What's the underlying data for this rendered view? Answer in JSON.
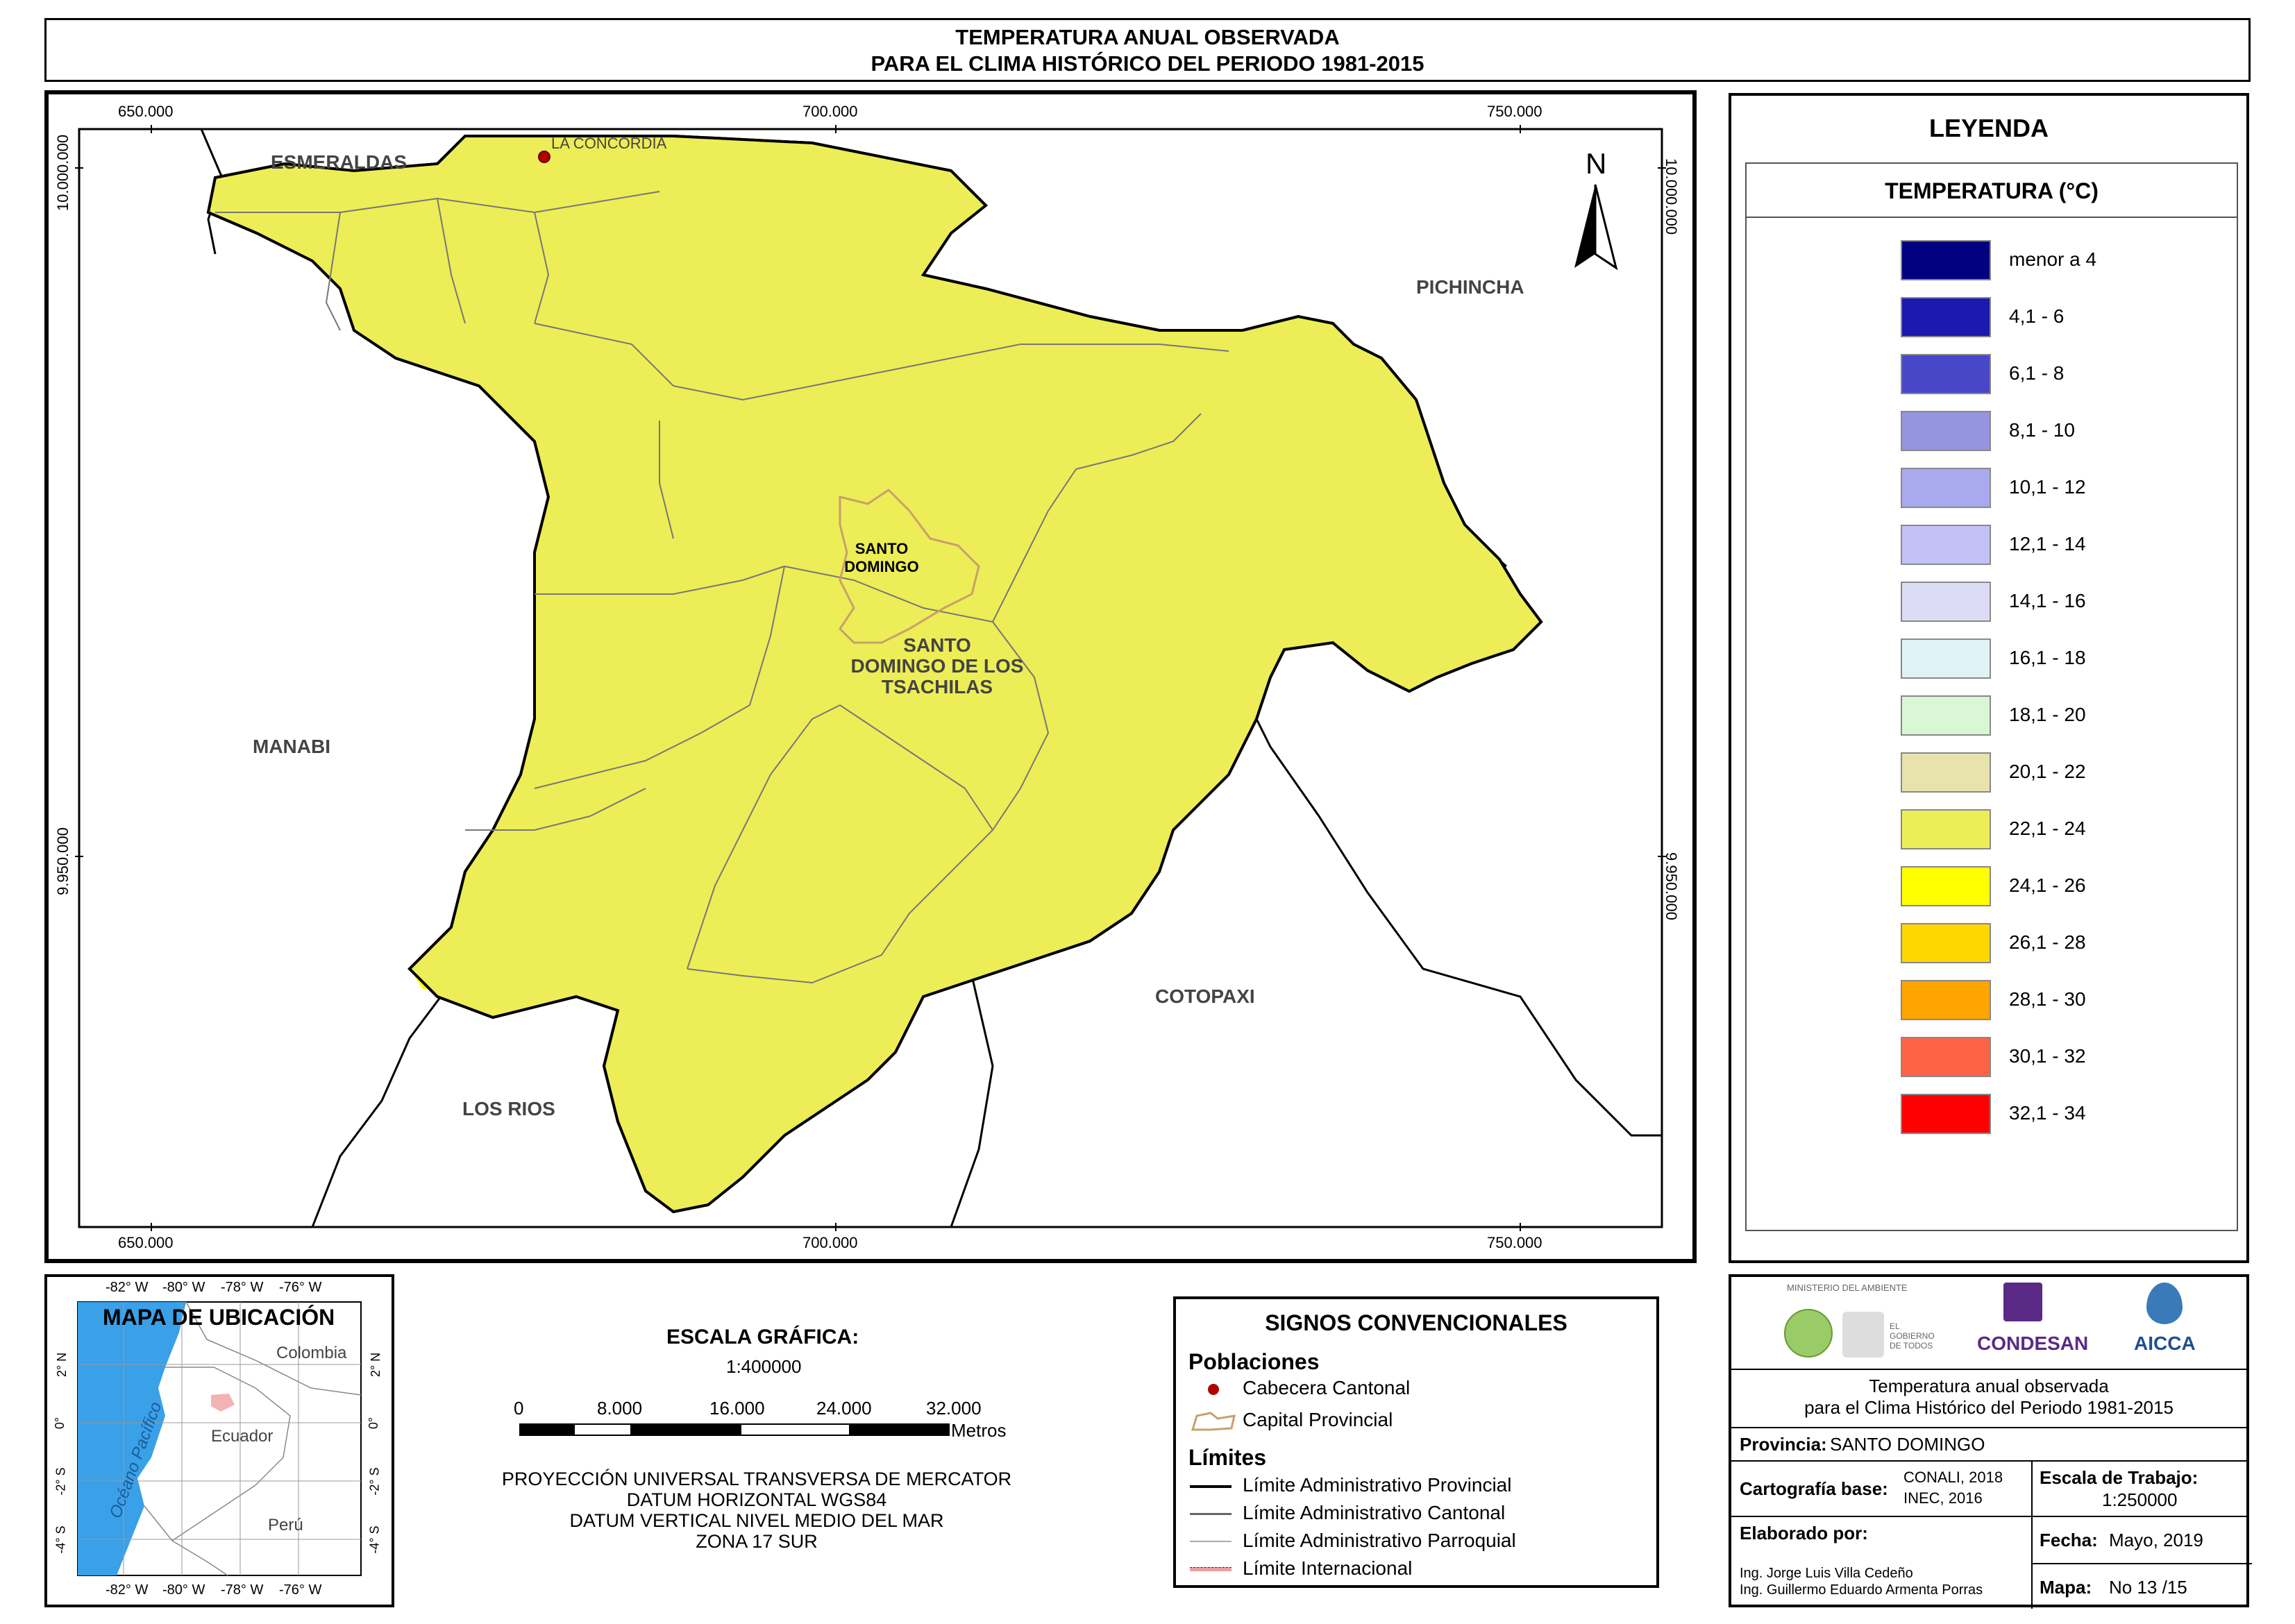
{
  "title": {
    "line1": "TEMPERATURA ANUAL OBSERVADA",
    "line2": "PARA EL CLIMA HISTÓRICO DEL PERIODO 1981-2015"
  },
  "map": {
    "x_ticks": [
      "650.000",
      "700.000",
      "750.000"
    ],
    "y_ticks": [
      "10.000.000",
      "9.950.000"
    ],
    "north": "N",
    "regions": {
      "esmeraldas": "ESMERALDAS",
      "pichincha": "PICHINCHA",
      "manabi": "MANABI",
      "cotopaxi": "COTOPAXI",
      "los_rios": "LOS RIOS",
      "santo_domingo_de_los": "SANTO",
      "santo_domingo_de_los_2": "DOMINGO DE LOS",
      "santo_domingo_de_los_3": "TSACHILAS"
    },
    "cities": {
      "la_concordia": "LA CONCORDIA",
      "santo_domingo_1": "SANTO",
      "santo_domingo_2": "DOMINGO"
    },
    "colors": {
      "t22_24": "#eded57",
      "t24_26": "#ffff00",
      "t20_22": "#e8e3ad",
      "t18_20": "#d9f7d4",
      "t16_18": "#e1f2f7",
      "t14_16": "#dcdcf7"
    }
  },
  "legend": {
    "title": "LEYENDA",
    "subtitle": "TEMPERATURA (°C)",
    "items": [
      {
        "label": "menor a 4",
        "color": "#000080"
      },
      {
        "label": "4,1 - 6",
        "color": "#1a1ab0"
      },
      {
        "label": "6,1 - 8",
        "color": "#4747c8"
      },
      {
        "label": "8,1 - 10",
        "color": "#9494e0"
      },
      {
        "label": "10,1 - 12",
        "color": "#a9a9ee"
      },
      {
        "label": "12,1 - 14",
        "color": "#c2c2f7"
      },
      {
        "label": "14,1 - 16",
        "color": "#dcdcf7"
      },
      {
        "label": "16,1 - 18",
        "color": "#e1f2f7"
      },
      {
        "label": "18,1 - 20",
        "color": "#d9f7d4"
      },
      {
        "label": "20,1 - 22",
        "color": "#e8e3ad"
      },
      {
        "label": "22,1 - 24",
        "color": "#eded57"
      },
      {
        "label": "24,1 - 26",
        "color": "#ffff00"
      },
      {
        "label": "26,1 - 28",
        "color": "#ffd700"
      },
      {
        "label": "28,1 - 30",
        "color": "#ffa500"
      },
      {
        "label": "30,1 - 32",
        "color": "#ff6347"
      },
      {
        "label": "32,1 - 34",
        "color": "#ff0000"
      }
    ]
  },
  "location_map": {
    "title": "MAPA DE UBICACIÓN",
    "top_ticks": [
      "-82° W",
      "-80° W",
      "-78° W",
      "-76° W"
    ],
    "bottom_ticks": [
      "-82° W",
      "-80° W",
      "-78° W",
      "-76° W"
    ],
    "left_ticks": [
      "2° N",
      "0°",
      "-2° S",
      "-4° S"
    ],
    "right_ticks": [
      "2° N",
      "0°",
      "-2° S",
      "-4° S"
    ],
    "ocean": "Océano Pacífico",
    "colombia": "Colombia",
    "ecuador": "Ecuador",
    "peru": "Perú"
  },
  "scale": {
    "title": "ESCALA GRÁFICA:",
    "ratio": "1:400000",
    "ticks": [
      "0",
      "8.000",
      "16.000",
      "24.000",
      "32.000"
    ],
    "unit": "Metros",
    "proj1": "PROYECCIÓN UNIVERSAL TRANSVERSA DE MERCATOR",
    "proj2": "DATUM HORIZONTAL WGS84",
    "proj3": "DATUM VERTICAL NIVEL MEDIO DEL MAR",
    "proj4": "ZONA 17 SUR"
  },
  "signs": {
    "title": "SIGNOS CONVENCIONALES",
    "poblaciones": "Poblaciones",
    "cabecera": "Cabecera Cantonal",
    "capital": "Capital Provincial",
    "limites": "Límites",
    "lim_prov": "Límite Administrativo Provincial",
    "lim_cant": "Límite Administrativo Cantonal",
    "lim_parr": "Límite Administrativo Parroquial",
    "lim_int": "Límite Internacional"
  },
  "info": {
    "logo1": "MINISTERIO DEL AMBIENTE",
    "logo2": "EL GOBIERNO DE TODOS",
    "logo3": "CONDESAN",
    "logo4": "AICCA",
    "desc1": "Temperatura anual observada",
    "desc2": "para el Clima Histórico del Periodo 1981-2015",
    "provincia_label": "Provincia:",
    "provincia": "SANTO DOMINGO",
    "cartografia_label": "Cartografía base:",
    "cartografia1": "CONALI, 2018",
    "cartografia2": "INEC, 2016",
    "escala_label": "Escala de Trabajo:",
    "escala": "1:250000",
    "elaborado_label": "Elaborado por:",
    "autor1": "Ing. Jorge Luis Villa Cedeño",
    "autor2": "Ing. Guillermo Eduardo Armenta Porras",
    "fecha_label": "Fecha:",
    "fecha": "Mayo, 2019",
    "mapa_label": "Mapa:",
    "mapa": "No 13 /15"
  }
}
